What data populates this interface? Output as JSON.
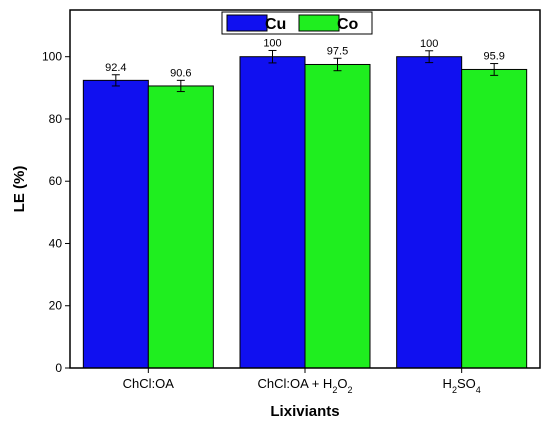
{
  "chart_data": {
    "type": "bar",
    "xlabel": "Lixiviants",
    "ylabel": "LE (%)",
    "ylim": [
      0,
      115
    ],
    "yticks": [
      0,
      20,
      40,
      60,
      80,
      100
    ],
    "grid": false,
    "legend_position": "top-center",
    "categories": [
      {
        "parts": [
          {
            "t": "ChCl:OA"
          }
        ]
      },
      {
        "parts": [
          {
            "t": "ChCl:OA + H"
          },
          {
            "t": "2",
            "sub": true
          },
          {
            "t": "O"
          },
          {
            "t": "2",
            "sub": true
          }
        ]
      },
      {
        "parts": [
          {
            "t": "H"
          },
          {
            "t": "2",
            "sub": true
          },
          {
            "t": "SO"
          },
          {
            "t": "4",
            "sub": true
          }
        ]
      }
    ],
    "series": [
      {
        "name": "Cu",
        "color": "#1010f0",
        "values": [
          92.4,
          100,
          100
        ],
        "labels": [
          "92.4",
          "100",
          "100"
        ],
        "errors": [
          1.8,
          2.0,
          1.9
        ]
      },
      {
        "name": "Co",
        "color": "#1fee1f",
        "values": [
          90.6,
          97.5,
          95.9
        ],
        "labels": [
          "90.6",
          "97.5",
          "95.9"
        ],
        "errors": [
          1.8,
          2.0,
          1.9
        ]
      }
    ]
  }
}
